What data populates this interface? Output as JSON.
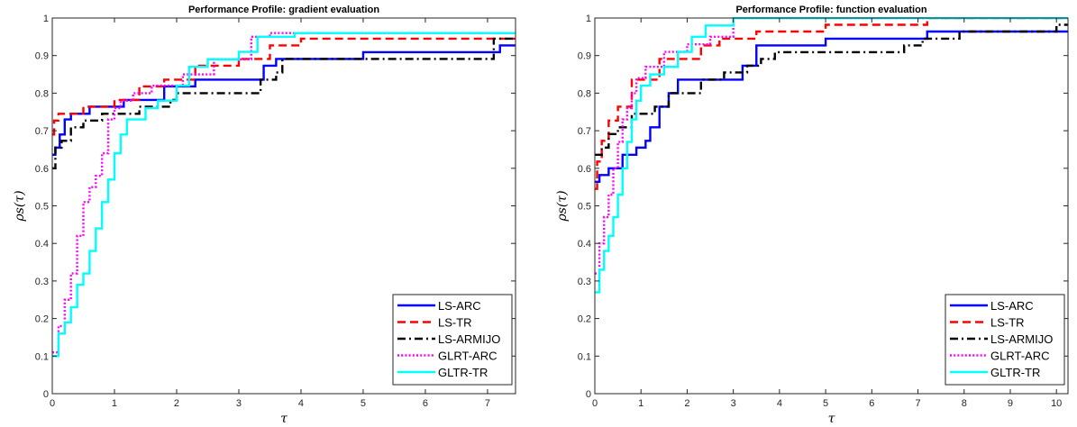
{
  "chart_data": [
    {
      "type": "line",
      "title": "Performance Profile: gradient evaluation",
      "xlabel": "τ",
      "ylabel": "ρs(τ)",
      "xlim": [
        0,
        7.45
      ],
      "ylim": [
        0,
        1
      ],
      "xticks": [
        0,
        1,
        2,
        3,
        4,
        5,
        6,
        7
      ],
      "xtick_labels": [
        "0",
        "1",
        "2",
        "3",
        "4",
        "5",
        "6",
        "7"
      ],
      "yticks": [
        0,
        0.1,
        0.2,
        0.3,
        0.4,
        0.5,
        0.6,
        0.7,
        0.8,
        0.9,
        1
      ],
      "ytick_labels": [
        "0",
        "0.1",
        "0.2",
        "0.3",
        "0.4",
        "0.5",
        "0.6",
        "0.7",
        "0.8",
        "0.9",
        "1"
      ],
      "grid": false,
      "legend_position": "bottom-right",
      "series": [
        {
          "name": "LS-ARC",
          "color": "#0000ff",
          "dash": "solid",
          "x": [
            0,
            0.05,
            0.12,
            0.2,
            0.3,
            0.6,
            1.15,
            1.8,
            2.3,
            3.4,
            3.6,
            4.3,
            5.0,
            7.2,
            7.45
          ],
          "y": [
            0.636,
            0.655,
            0.69,
            0.73,
            0.745,
            0.764,
            0.782,
            0.818,
            0.836,
            0.873,
            0.891,
            0.891,
            0.909,
            0.927,
            0.927
          ]
        },
        {
          "name": "LS-TR",
          "color": "#ff0000",
          "dash": "dashed",
          "x": [
            0,
            0.03,
            0.1,
            0.5,
            1.0,
            1.4,
            1.8,
            2.3,
            3.0,
            3.5,
            4.0,
            7.45
          ],
          "y": [
            0.69,
            0.727,
            0.745,
            0.764,
            0.782,
            0.818,
            0.836,
            0.873,
            0.891,
            0.927,
            0.945,
            0.945
          ]
        },
        {
          "name": "LS-ARMIJO",
          "color": "#000000",
          "dash": "dashdot",
          "x": [
            0,
            0.05,
            0.15,
            0.3,
            0.5,
            0.8,
            1.4,
            1.9,
            2.0,
            3.35,
            3.6,
            3.7,
            7.1,
            7.45
          ],
          "y": [
            0.6,
            0.655,
            0.673,
            0.709,
            0.727,
            0.745,
            0.764,
            0.782,
            0.8,
            0.836,
            0.855,
            0.891,
            0.945,
            0.945
          ]
        },
        {
          "name": "GLRT-ARC",
          "color": "#ff00ff",
          "dash": "dotted",
          "x": [
            0,
            0.1,
            0.2,
            0.3,
            0.4,
            0.5,
            0.6,
            0.7,
            0.8,
            0.9,
            1.0,
            1.1,
            1.3,
            1.6,
            2.1,
            2.6,
            3.2,
            3.5,
            7.45
          ],
          "y": [
            0.11,
            0.18,
            0.25,
            0.32,
            0.42,
            0.51,
            0.55,
            0.58,
            0.64,
            0.73,
            0.76,
            0.78,
            0.8,
            0.82,
            0.85,
            0.89,
            0.95,
            0.96,
            0.96
          ]
        },
        {
          "name": "GLTR-TR",
          "color": "#00ffff",
          "dash": "solid",
          "x": [
            0,
            0.1,
            0.2,
            0.3,
            0.4,
            0.5,
            0.6,
            0.7,
            0.8,
            0.9,
            1.0,
            1.1,
            1.2,
            1.5,
            1.7,
            2.0,
            2.2,
            2.5,
            3.0,
            3.3,
            3.9,
            7.45
          ],
          "y": [
            0.1,
            0.16,
            0.19,
            0.23,
            0.29,
            0.32,
            0.38,
            0.44,
            0.51,
            0.57,
            0.64,
            0.69,
            0.73,
            0.76,
            0.78,
            0.82,
            0.87,
            0.89,
            0.91,
            0.95,
            0.96,
            0.96
          ]
        }
      ]
    },
    {
      "type": "line",
      "title": "Performance Profile: function evaluation",
      "xlabel": "τ",
      "ylabel": "ρs(τ)",
      "xlim": [
        0,
        10.25
      ],
      "ylim": [
        0,
        1
      ],
      "xticks": [
        0,
        1,
        2,
        3,
        4,
        5,
        6,
        7,
        8,
        9,
        10
      ],
      "xtick_labels": [
        "0",
        "1",
        "2",
        "3",
        "4",
        "5",
        "6",
        "7",
        "8",
        "9",
        "10"
      ],
      "yticks": [
        0,
        0.1,
        0.2,
        0.3,
        0.4,
        0.5,
        0.6,
        0.7,
        0.8,
        0.9,
        1
      ],
      "ytick_labels": [
        "0",
        "0.1",
        "0.2",
        "0.3",
        "0.4",
        "0.5",
        "0.6",
        "0.7",
        "0.8",
        "0.9",
        "1"
      ],
      "grid": false,
      "legend_position": "bottom-right",
      "series": [
        {
          "name": "LS-ARC",
          "color": "#0000ff",
          "dash": "solid",
          "x": [
            0,
            0.1,
            0.3,
            0.6,
            0.9,
            1.1,
            1.2,
            1.4,
            1.6,
            1.8,
            3.2,
            3.5,
            5.0,
            7.2,
            10.25
          ],
          "y": [
            0.564,
            0.582,
            0.6,
            0.636,
            0.655,
            0.673,
            0.709,
            0.764,
            0.8,
            0.836,
            0.873,
            0.927,
            0.945,
            0.964,
            0.964
          ]
        },
        {
          "name": "LS-TR",
          "color": "#ff0000",
          "dash": "dashed",
          "x": [
            0,
            0.05,
            0.15,
            0.3,
            0.5,
            0.8,
            1.4,
            2.3,
            2.7,
            3.5,
            5.0,
            7.2,
            10.25
          ],
          "y": [
            0.545,
            0.618,
            0.673,
            0.727,
            0.764,
            0.836,
            0.891,
            0.927,
            0.945,
            0.964,
            0.982,
            1.0,
            1.0
          ]
        },
        {
          "name": "LS-ARMIJO",
          "color": "#000000",
          "dash": "dashdot",
          "x": [
            0,
            0.15,
            0.3,
            0.5,
            0.8,
            1.3,
            1.6,
            2.3,
            2.8,
            3.3,
            3.6,
            3.9,
            6.7,
            7.1,
            7.9,
            10.0,
            10.25
          ],
          "y": [
            0.636,
            0.655,
            0.691,
            0.709,
            0.745,
            0.764,
            0.8,
            0.836,
            0.855,
            0.873,
            0.891,
            0.909,
            0.927,
            0.945,
            0.964,
            0.982,
            0.982
          ]
        },
        {
          "name": "GLRT-ARC",
          "color": "#ff00ff",
          "dash": "dotted",
          "x": [
            0,
            0.1,
            0.2,
            0.3,
            0.4,
            0.5,
            0.6,
            0.7,
            0.8,
            0.9,
            1.1,
            1.5,
            2.0,
            2.5,
            3.0,
            10.25
          ],
          "y": [
            0.32,
            0.4,
            0.47,
            0.53,
            0.6,
            0.67,
            0.73,
            0.76,
            0.8,
            0.84,
            0.87,
            0.91,
            0.93,
            0.95,
            1.0,
            1.0
          ]
        },
        {
          "name": "GLTR-TR",
          "color": "#00ffff",
          "dash": "solid",
          "x": [
            0,
            0.1,
            0.2,
            0.3,
            0.4,
            0.5,
            0.6,
            0.7,
            0.8,
            0.9,
            1.0,
            1.2,
            1.5,
            1.8,
            2.1,
            2.4,
            3.0,
            10.25
          ],
          "y": [
            0.27,
            0.33,
            0.38,
            0.42,
            0.47,
            0.53,
            0.6,
            0.67,
            0.73,
            0.78,
            0.82,
            0.85,
            0.87,
            0.91,
            0.95,
            0.98,
            1.0,
            1.0
          ]
        }
      ]
    }
  ]
}
